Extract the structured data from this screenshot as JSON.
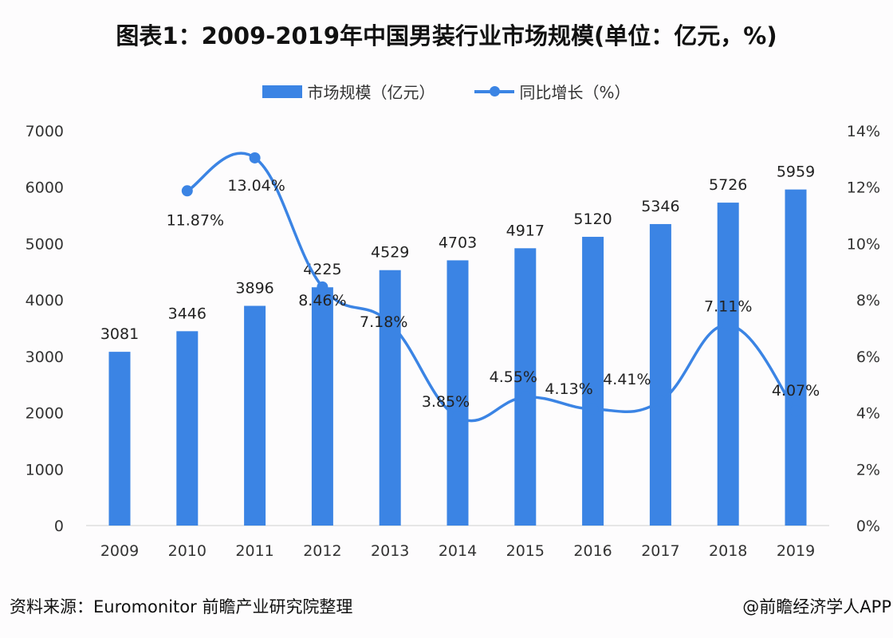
{
  "chart_data": {
    "type": "bar+line",
    "title": "图表1：2009-2019年中国男装行业市场规模(单位：亿元，%)",
    "categories": [
      "2009",
      "2010",
      "2011",
      "2012",
      "2013",
      "2014",
      "2015",
      "2016",
      "2017",
      "2018",
      "2019"
    ],
    "series": [
      {
        "name": "市场规模（亿元）",
        "type": "bar",
        "axis": "left",
        "values": [
          3081,
          3446,
          3896,
          4225,
          4529,
          4703,
          4917,
          5120,
          5346,
          5726,
          5959
        ],
        "color": "#3b84e4"
      },
      {
        "name": "同比增长（%）",
        "type": "line",
        "axis": "right",
        "smooth": true,
        "values": [
          null,
          11.87,
          13.04,
          8.46,
          7.18,
          3.85,
          4.55,
          4.13,
          4.41,
          7.11,
          4.07
        ],
        "labels": [
          "",
          "11.87%",
          "13.04%",
          "8.46%",
          "7.18%",
          "3.85%",
          "4.55%",
          "4.13%",
          "4.41%",
          "7.11%",
          "4.07%"
        ],
        "color": "#3b84e4"
      }
    ],
    "left_axis": {
      "ylim": [
        0,
        7000
      ],
      "ticks": [
        "0",
        "1000",
        "2000",
        "3000",
        "4000",
        "5000",
        "6000",
        "7000"
      ]
    },
    "right_axis": {
      "ylim": [
        0,
        14
      ],
      "ticks": [
        "0%",
        "2%",
        "4%",
        "6%",
        "8%",
        "10%",
        "12%",
        "14%"
      ]
    },
    "grid": false,
    "legend": "top-center"
  },
  "footer": {
    "source": "资料来源：Euromonitor  前瞻产业研究院整理",
    "credit": "@前瞻经济学人APP"
  }
}
